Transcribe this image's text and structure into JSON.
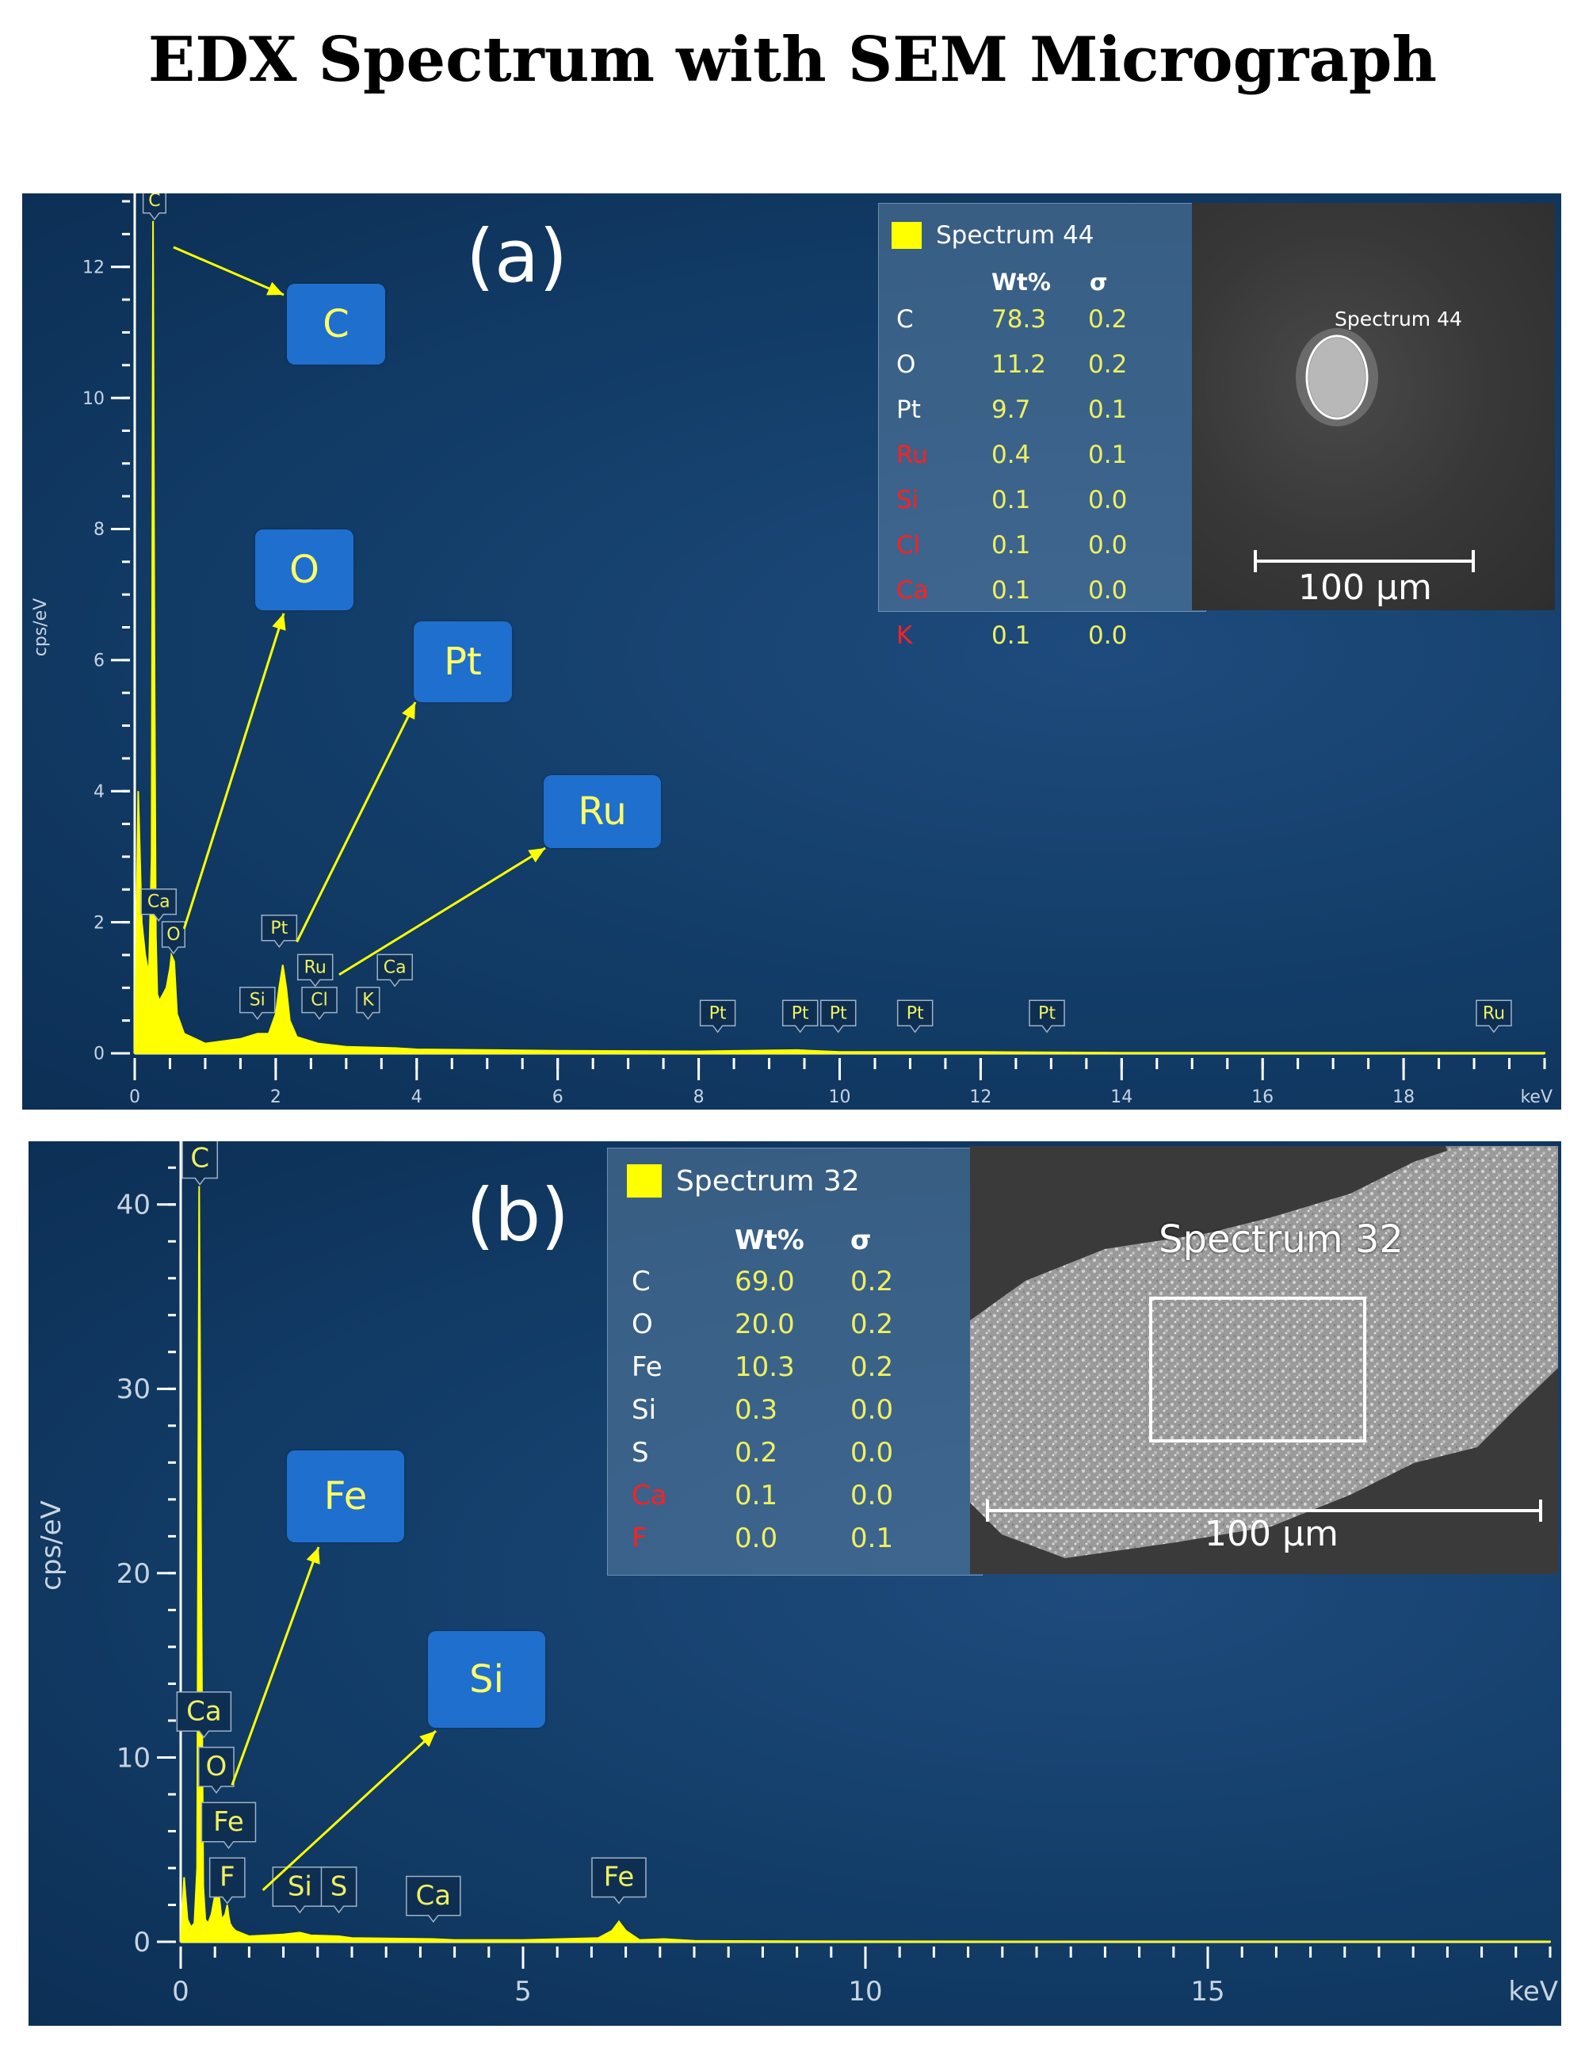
{
  "title": "EDX Spectrum with SEM Micrograph",
  "colors": {
    "background": "#123c67",
    "spectrum": "#ffff00",
    "axis": "#ffffff",
    "callout": "#1f6fcf",
    "callout_text": "#ffff66",
    "value_text": "#f0f060",
    "flag_text_red": "#ff2020"
  },
  "panels": [
    {
      "label": "(a)",
      "legend": {
        "spectrum_name": "Spectrum 44",
        "col_wt": "Wt%",
        "col_sigma": "σ",
        "rows": [
          {
            "el": "C",
            "wt": "78.3",
            "sigma": "0.2",
            "flag": false
          },
          {
            "el": "O",
            "wt": "11.2",
            "sigma": "0.2",
            "flag": false
          },
          {
            "el": "Pt",
            "wt": "9.7",
            "sigma": "0.1",
            "flag": false
          },
          {
            "el": "Ru",
            "wt": "0.4",
            "sigma": "0.1",
            "flag": true
          },
          {
            "el": "Si",
            "wt": "0.1",
            "sigma": "0.0",
            "flag": true
          },
          {
            "el": "Cl",
            "wt": "0.1",
            "sigma": "0.0",
            "flag": true
          },
          {
            "el": "Ca",
            "wt": "0.1",
            "sigma": "0.0",
            "flag": true
          },
          {
            "el": "K",
            "wt": "0.1",
            "sigma": "0.0",
            "flag": true
          }
        ]
      },
      "sem": {
        "spectrum_label": "Spectrum 44",
        "scale_label": "100 µm"
      },
      "callouts": [
        "C",
        "O",
        "Pt",
        "Ru"
      ]
    },
    {
      "label": "(b)",
      "legend": {
        "spectrum_name": "Spectrum 32",
        "col_wt": "Wt%",
        "col_sigma": "σ",
        "rows": [
          {
            "el": "C",
            "wt": "69.0",
            "sigma": "0.2",
            "flag": false
          },
          {
            "el": "O",
            "wt": "20.0",
            "sigma": "0.2",
            "flag": false
          },
          {
            "el": "Fe",
            "wt": "10.3",
            "sigma": "0.2",
            "flag": false
          },
          {
            "el": "Si",
            "wt": "0.3",
            "sigma": "0.0",
            "flag": false
          },
          {
            "el": "S",
            "wt": "0.2",
            "sigma": "0.0",
            "flag": false
          },
          {
            "el": "Ca",
            "wt": "0.1",
            "sigma": "0.0",
            "flag": true
          },
          {
            "el": "F",
            "wt": "0.0",
            "sigma": "0.1",
            "flag": true
          }
        ]
      },
      "sem": {
        "spectrum_label": "Spectrum 32",
        "scale_label": "100 µm"
      },
      "callouts": [
        "Fe",
        "Si"
      ]
    }
  ],
  "chart_data": [
    {
      "type": "area",
      "title": "(a)",
      "xlabel": "keV",
      "ylabel": "cps/eV",
      "xlim": [
        0,
        20
      ],
      "ylim": [
        0,
        13
      ],
      "xticks": [
        0,
        2,
        4,
        6,
        8,
        10,
        12,
        14,
        16,
        18
      ],
      "yticks": [
        0,
        2,
        4,
        6,
        8,
        10,
        12
      ],
      "series": [
        {
          "name": "Spectrum 44",
          "x": [
            0,
            0.05,
            0.1,
            0.15,
            0.2,
            0.24,
            0.26,
            0.28,
            0.3,
            0.32,
            0.35,
            0.4,
            0.45,
            0.5,
            0.52,
            0.56,
            0.6,
            0.7,
            1.0,
            1.5,
            1.74,
            1.9,
            2.0,
            2.05,
            2.1,
            2.15,
            2.2,
            2.3,
            2.6,
            3.0,
            3.7,
            4.0,
            6.0,
            8.0,
            9.4,
            10.0,
            12.0,
            14.0,
            16.0,
            18.0,
            20.0
          ],
          "y": [
            0,
            4.0,
            2.0,
            1.5,
            1.2,
            3.0,
            12.7,
            6.0,
            1.8,
            0.9,
            0.8,
            0.9,
            1.0,
            1.3,
            1.5,
            1.4,
            0.6,
            0.3,
            0.15,
            0.22,
            0.3,
            0.3,
            0.6,
            1.0,
            1.35,
            1.0,
            0.5,
            0.25,
            0.15,
            0.1,
            0.08,
            0.06,
            0.04,
            0.03,
            0.05,
            0.02,
            0.02,
            0.01,
            0.01,
            0.01,
            0.01
          ]
        }
      ],
      "peak_labels": [
        {
          "label": "C",
          "x": 0.28,
          "y": 12.7
        },
        {
          "label": "Ca",
          "x": 0.34,
          "y": 2.0
        },
        {
          "label": "O",
          "x": 0.55,
          "y": 1.5
        },
        {
          "label": "Si",
          "x": 1.74,
          "y": 0.5
        },
        {
          "label": "Pt",
          "x": 2.05,
          "y": 1.6
        },
        {
          "label": "Ru",
          "x": 2.56,
          "y": 1.0
        },
        {
          "label": "Cl",
          "x": 2.62,
          "y": 0.5
        },
        {
          "label": "K",
          "x": 3.31,
          "y": 0.5
        },
        {
          "label": "Ca",
          "x": 3.69,
          "y": 1.0
        },
        {
          "label": "Pt",
          "x": 8.27,
          "y": 0.3
        },
        {
          "label": "Pt",
          "x": 9.44,
          "y": 0.3
        },
        {
          "label": "Pt",
          "x": 9.98,
          "y": 0.3
        },
        {
          "label": "Pt",
          "x": 11.07,
          "y": 0.3
        },
        {
          "label": "Pt",
          "x": 12.94,
          "y": 0.3
        },
        {
          "label": "Ru",
          "x": 19.28,
          "y": 0.3
        }
      ],
      "annotations": [
        "C",
        "O",
        "Pt",
        "Ru"
      ]
    },
    {
      "type": "area",
      "title": "(b)",
      "xlabel": "keV",
      "ylabel": "cps/eV",
      "xlim": [
        0,
        20
      ],
      "ylim": [
        0,
        43
      ],
      "xticks": [
        0,
        5,
        10,
        15
      ],
      "yticks": [
        0,
        10,
        20,
        30,
        40
      ],
      "series": [
        {
          "name": "Spectrum 32",
          "x": [
            0,
            0.05,
            0.1,
            0.15,
            0.2,
            0.24,
            0.27,
            0.3,
            0.33,
            0.36,
            0.4,
            0.45,
            0.5,
            0.52,
            0.56,
            0.6,
            0.65,
            0.68,
            0.7,
            0.72,
            0.75,
            0.8,
            1.0,
            1.5,
            1.74,
            1.9,
            2.31,
            2.5,
            3.69,
            4.0,
            5.0,
            6.1,
            6.3,
            6.4,
            6.5,
            6.7,
            7.06,
            7.5,
            9.0,
            12.0,
            16.0,
            20.0
          ],
          "y": [
            0,
            3.5,
            1.2,
            0.8,
            1.0,
            4.0,
            41.0,
            20.0,
            3.0,
            1.2,
            1.0,
            1.5,
            2.5,
            3.0,
            2.5,
            1.2,
            1.5,
            2.0,
            1.4,
            1.0,
            0.8,
            0.6,
            0.3,
            0.4,
            0.5,
            0.35,
            0.3,
            0.2,
            0.15,
            0.1,
            0.1,
            0.2,
            0.6,
            1.1,
            0.6,
            0.1,
            0.15,
            0.05,
            0.03,
            0.02,
            0.01,
            0.01
          ]
        }
      ],
      "peak_labels": [
        {
          "label": "C",
          "x": 0.28,
          "y": 41.0
        },
        {
          "label": "Ca",
          "x": 0.34,
          "y": 11.0
        },
        {
          "label": "O",
          "x": 0.52,
          "y": 8.0
        },
        {
          "label": "Fe",
          "x": 0.7,
          "y": 5.0
        },
        {
          "label": "F",
          "x": 0.68,
          "y": 2.0
        },
        {
          "label": "Si",
          "x": 1.74,
          "y": 1.5
        },
        {
          "label": "S",
          "x": 2.31,
          "y": 1.5
        },
        {
          "label": "Ca",
          "x": 3.69,
          "y": 1.0
        },
        {
          "label": "Fe",
          "x": 6.4,
          "y": 2.0
        }
      ],
      "annotations": [
        "Fe",
        "Si"
      ]
    }
  ]
}
